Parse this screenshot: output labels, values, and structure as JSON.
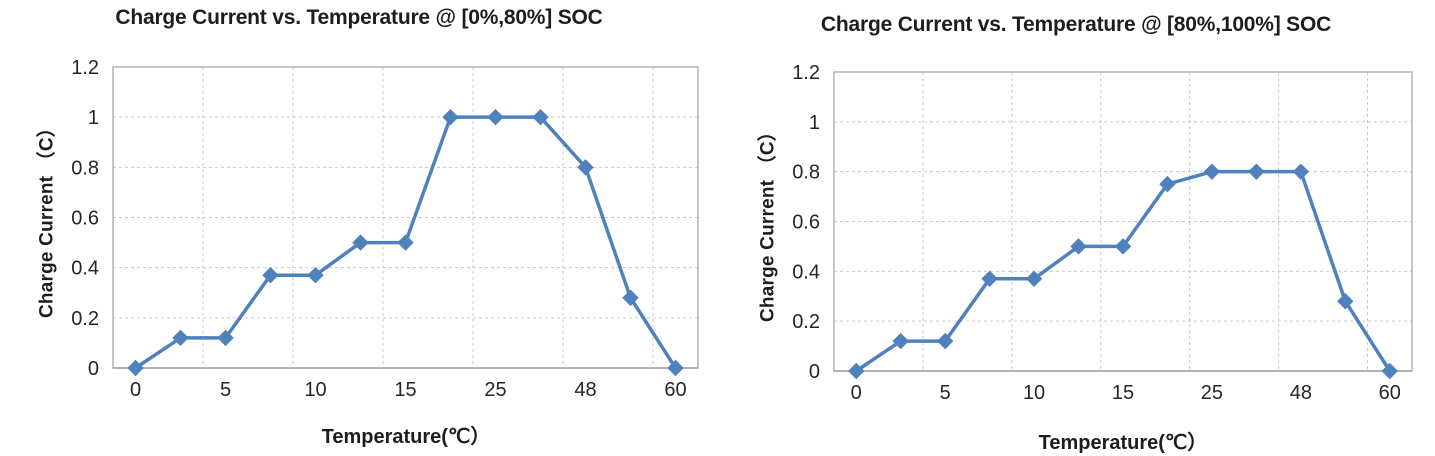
{
  "page": {
    "background": "#ffffff"
  },
  "style": {
    "line_color": "#4f81bd",
    "marker_color": "#4f81bd",
    "grid_color": "#c9c9c9",
    "border_color": "#b3b3b3",
    "text_color": "#1d1d1d"
  },
  "chart_data": [
    {
      "type": "line",
      "title": "Charge Current vs. Temperature @ [0%,80%] SOC",
      "xlabel": "Temperature(℃）",
      "ylabel": "Charge Current （C）",
      "x_axis_type": "category",
      "n_points": 13,
      "x_tick_labels": [
        "0",
        "5",
        "10",
        "15",
        "25",
        "48",
        "60"
      ],
      "x_labeled_point_indices": [
        0,
        2,
        4,
        6,
        8,
        10,
        12
      ],
      "y_ticks": [
        0,
        0.2,
        0.4,
        0.6,
        0.8,
        1,
        1.2
      ],
      "y_tick_labels": [
        "0",
        "0.2",
        "0.4",
        "0.6",
        "0.8",
        "1",
        "1.2"
      ],
      "ylim": [
        0,
        1.2
      ],
      "grid": "dashed, vertical gridlines between every other category",
      "legend": false,
      "marker": "diamond",
      "series": [
        {
          "name": "Charge Current",
          "values": [
            0,
            0.12,
            0.12,
            0.37,
            0.37,
            0.5,
            0.5,
            1.0,
            1.0,
            1.0,
            0.8,
            0.28,
            0
          ]
        }
      ]
    },
    {
      "type": "line",
      "title": "Charge Current vs. Temperature @ [80%,100%] SOC",
      "xlabel": "Temperature(℃）",
      "ylabel": "Charge Current （C）",
      "x_axis_type": "category",
      "n_points": 13,
      "x_tick_labels": [
        "0",
        "5",
        "10",
        "15",
        "25",
        "48",
        "60"
      ],
      "x_labeled_point_indices": [
        0,
        2,
        4,
        6,
        8,
        10,
        12
      ],
      "y_ticks": [
        0,
        0.2,
        0.4,
        0.6,
        0.8,
        1,
        1.2
      ],
      "y_tick_labels": [
        "0",
        "0.2",
        "0.4",
        "0.6",
        "0.8",
        "1",
        "1.2"
      ],
      "ylim": [
        0,
        1.2
      ],
      "grid": "dashed, vertical gridlines between every other category",
      "legend": false,
      "marker": "diamond",
      "series": [
        {
          "name": "Charge Current",
          "values": [
            0,
            0.12,
            0.12,
            0.37,
            0.37,
            0.5,
            0.5,
            0.75,
            0.8,
            0.8,
            0.8,
            0.28,
            0
          ]
        }
      ]
    }
  ]
}
